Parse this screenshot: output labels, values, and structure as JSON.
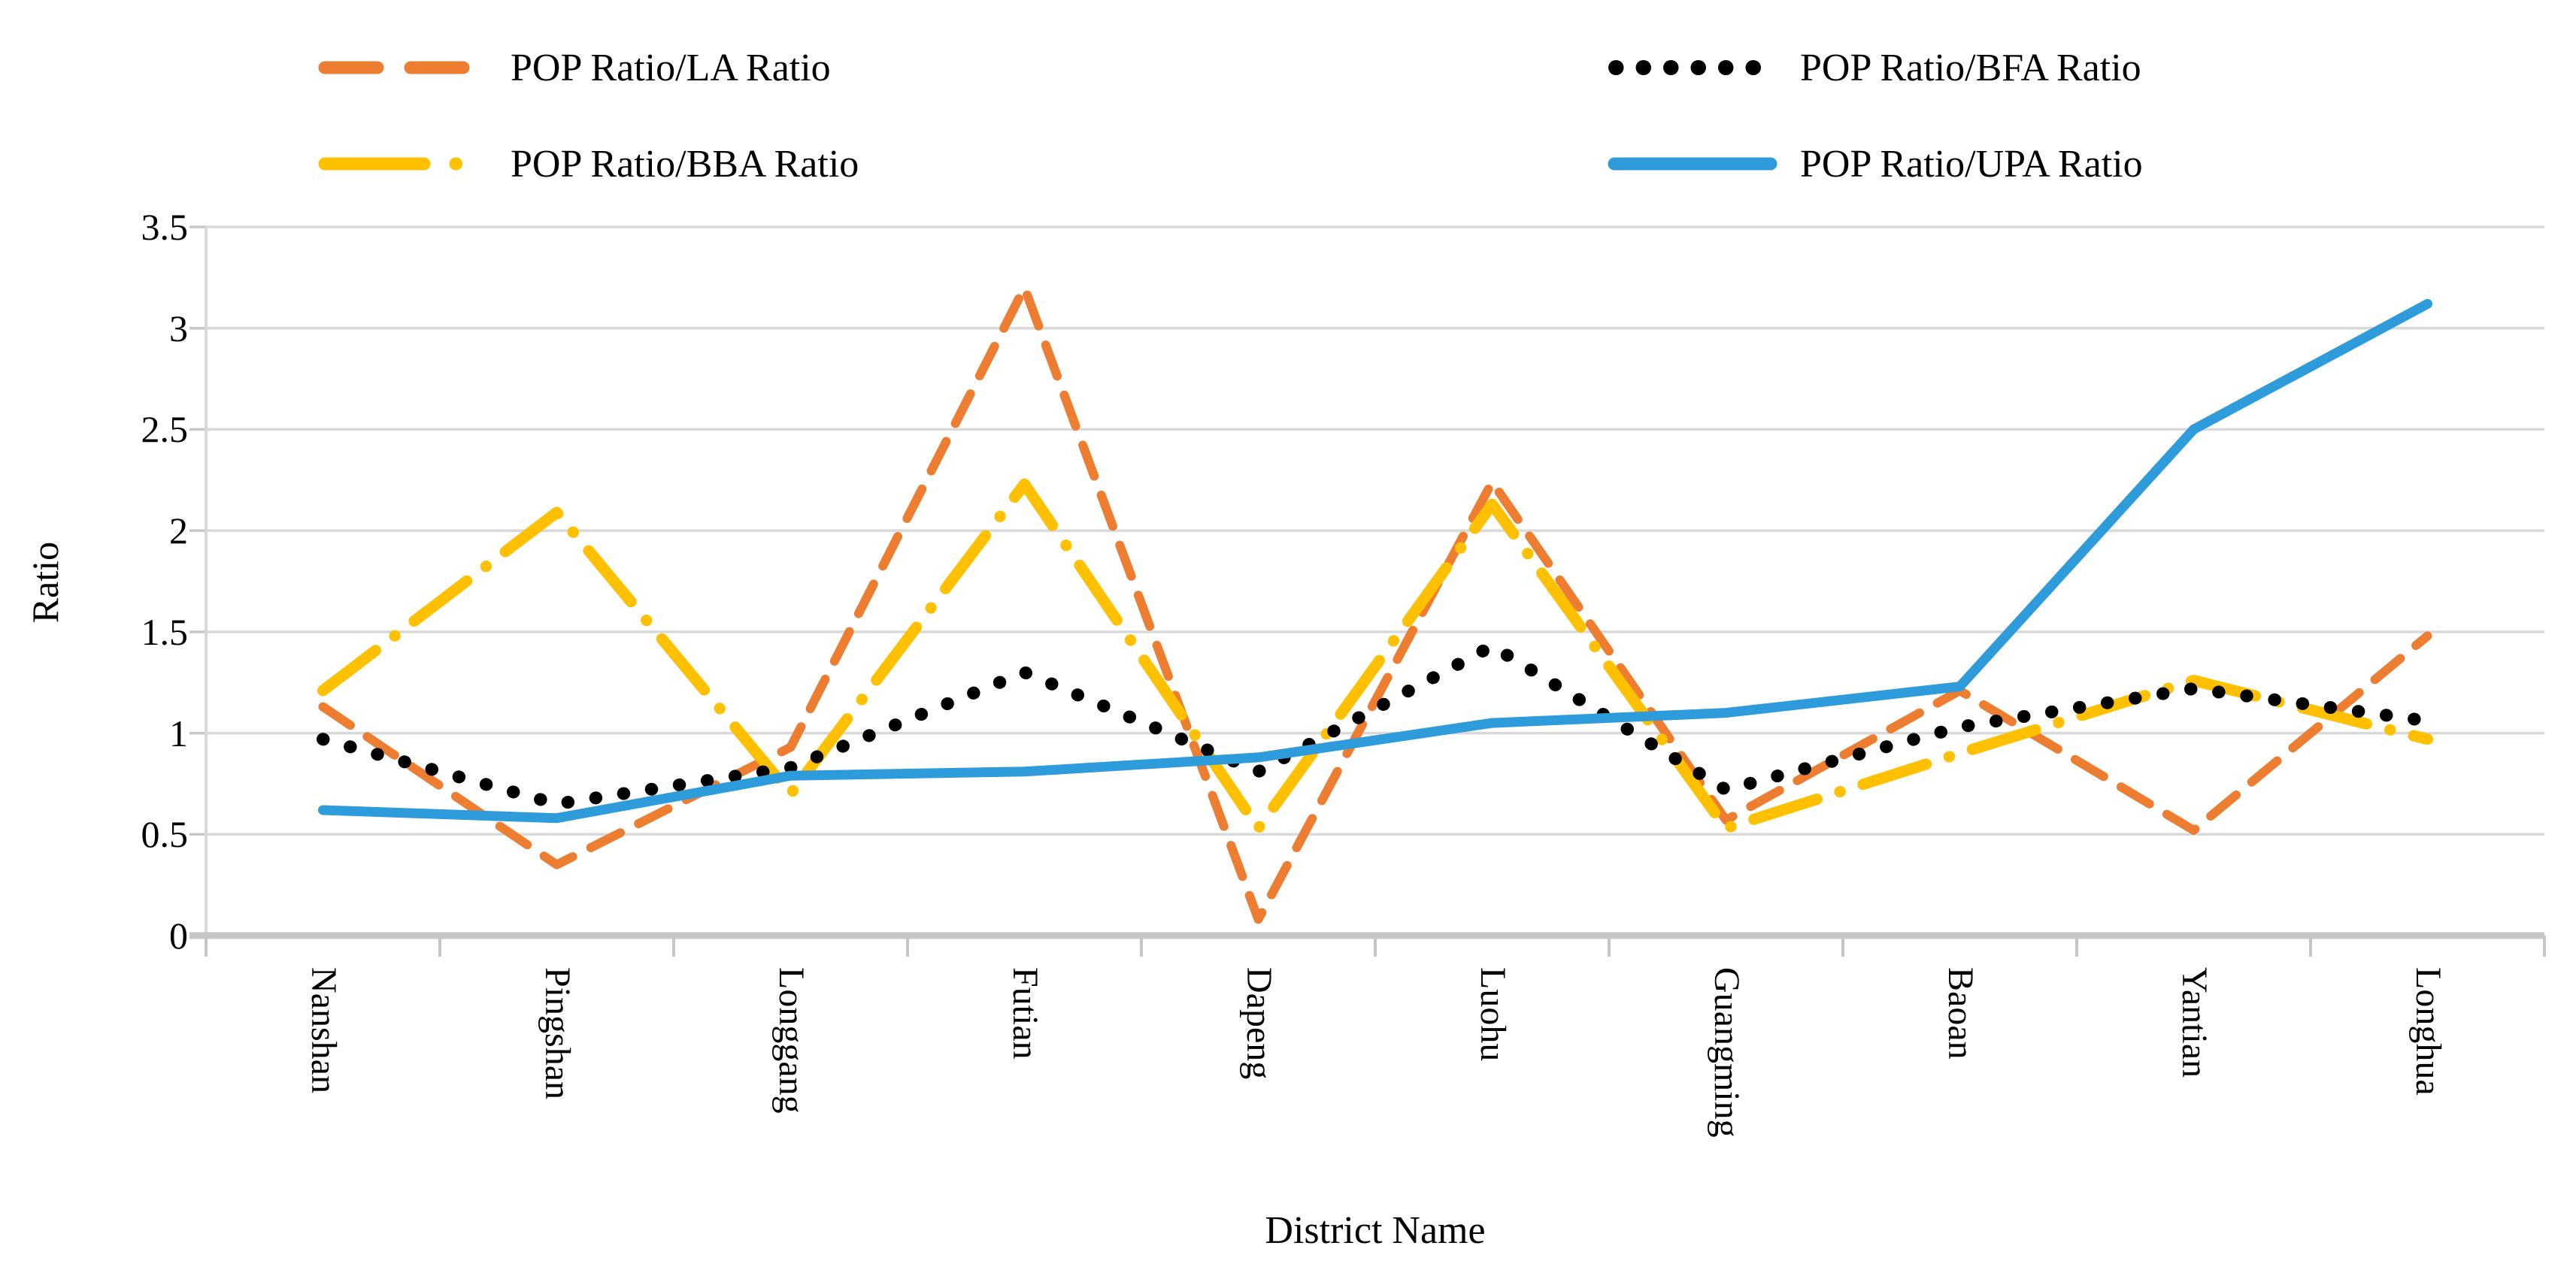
{
  "chart_data": {
    "type": "line",
    "title": "",
    "xlabel": "District Name",
    "ylabel": "Ratio",
    "ylim": [
      0,
      3.5
    ],
    "yticks": [
      "3.5",
      "3",
      "2.5",
      "2",
      "1.5",
      "1",
      "0.5",
      "0"
    ],
    "ytick_values": [
      3.5,
      3,
      2.5,
      2,
      1.5,
      1,
      0.5,
      0
    ],
    "grid": "horizontal",
    "legend_position": "top-two-columns",
    "categories": [
      "Nanshan",
      "Pingshan",
      "Longgang",
      "Futian",
      "Dapeng",
      "Luohu",
      "Guangming",
      "Baoan",
      "Yantian",
      "Longhua"
    ],
    "series": [
      {
        "name": "POP Ratio/LA Ratio",
        "color": "#ED7D31",
        "style": "dashed",
        "values": [
          1.13,
          0.35,
          0.93,
          3.2,
          0.08,
          2.24,
          0.57,
          1.21,
          0.52,
          1.48
        ]
      },
      {
        "name": "POP Ratio/BBA Ratio",
        "color": "#FFC000",
        "style": "dash-dot",
        "values": [
          1.21,
          2.09,
          0.7,
          2.23,
          0.53,
          2.13,
          0.53,
          0.9,
          1.26,
          0.97
        ]
      },
      {
        "name": "POP Ratio/BFA Ratio",
        "color": "#000000",
        "style": "dotted",
        "values": [
          0.97,
          0.65,
          0.83,
          1.3,
          0.81,
          1.43,
          0.72,
          1.03,
          1.22,
          1.06
        ]
      },
      {
        "name": "POP Ratio/UPA Ratio",
        "color": "#2E9BDA",
        "style": "solid",
        "values": [
          0.62,
          0.58,
          0.79,
          0.81,
          0.88,
          1.05,
          1.1,
          1.23,
          2.5,
          3.12
        ]
      }
    ],
    "axis_colors": {
      "gridline": "#D9D9D9",
      "axis": "#C6C6C6"
    }
  }
}
